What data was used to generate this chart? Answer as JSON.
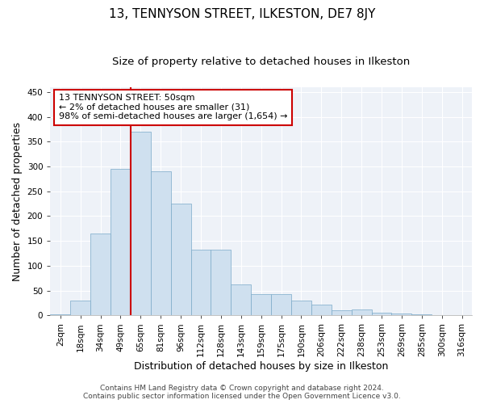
{
  "title": "13, TENNYSON STREET, ILKESTON, DE7 8JY",
  "subtitle": "Size of property relative to detached houses in Ilkeston",
  "xlabel": "Distribution of detached houses by size in Ilkeston",
  "ylabel": "Number of detached properties",
  "bar_color": "#cfe0ef",
  "bar_edge_color": "#7aaac8",
  "background_color": "#eef2f8",
  "categories": [
    "2sqm",
    "18sqm",
    "34sqm",
    "49sqm",
    "65sqm",
    "81sqm",
    "96sqm",
    "112sqm",
    "128sqm",
    "143sqm",
    "159sqm",
    "175sqm",
    "190sqm",
    "206sqm",
    "222sqm",
    "238sqm",
    "253sqm",
    "269sqm",
    "285sqm",
    "300sqm",
    "316sqm"
  ],
  "values": [
    2,
    30,
    165,
    295,
    370,
    290,
    225,
    133,
    133,
    62,
    43,
    43,
    30,
    22,
    10,
    12,
    5,
    4,
    2,
    1,
    0
  ],
  "ylim": [
    0,
    460
  ],
  "yticks": [
    0,
    50,
    100,
    150,
    200,
    250,
    300,
    350,
    400,
    450
  ],
  "annotation_line1": "13 TENNYSON STREET: 50sqm",
  "annotation_line2": "← 2% of detached houses are smaller (31)",
  "annotation_line3": "98% of semi-detached houses are larger (1,654) →",
  "vline_color": "#cc0000",
  "box_color": "#cc0000",
  "footer": "Contains HM Land Registry data © Crown copyright and database right 2024.\nContains public sector information licensed under the Open Government Licence v3.0.",
  "title_fontsize": 11,
  "subtitle_fontsize": 9.5,
  "axis_label_fontsize": 9,
  "tick_fontsize": 7.5,
  "annotation_fontsize": 8,
  "footer_fontsize": 6.5
}
